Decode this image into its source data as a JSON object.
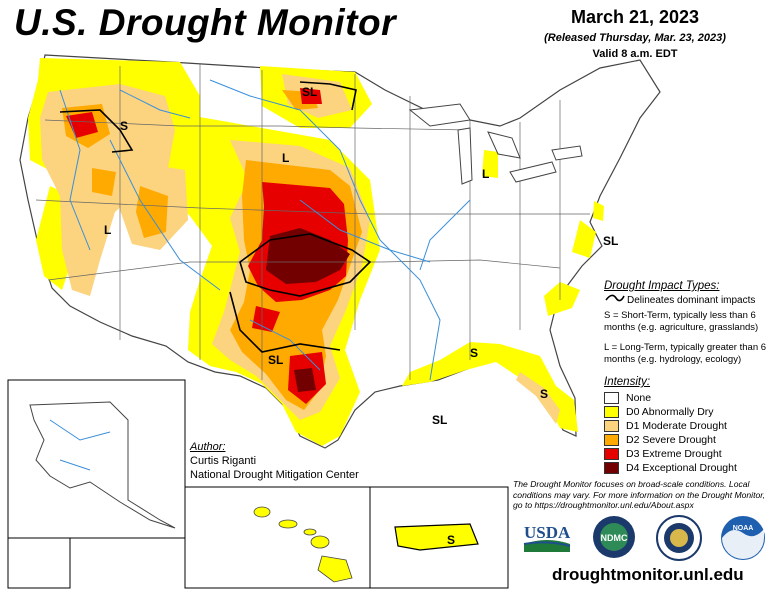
{
  "header": {
    "title": "U.S. Drought Monitor",
    "date": "March 21, 2023",
    "released": "(Released Thursday, Mar. 23, 2023)",
    "valid": "Valid 8 a.m. EDT"
  },
  "impact_types": {
    "title": "Drought Impact Types:",
    "line_label": "Delineates dominant impacts",
    "short_term": "S = Short-Term, typically less than 6 months (e.g. agriculture, grasslands)",
    "long_term": "L = Long-Term, typically greater than 6 months (e.g. hydrology, ecology)"
  },
  "intensity": {
    "title": "Intensity:",
    "categories": [
      {
        "label": "None",
        "color": "#ffffff"
      },
      {
        "label": "D0 Abnormally Dry",
        "color": "#ffff00"
      },
      {
        "label": "D1 Moderate Drought",
        "color": "#fcd37f"
      },
      {
        "label": "D2 Severe Drought",
        "color": "#ffaa00"
      },
      {
        "label": "D3 Extreme Drought",
        "color": "#e60000"
      },
      {
        "label": "D4 Exceptional Drought",
        "color": "#730000"
      }
    ]
  },
  "author": {
    "label": "Author:",
    "name": "Curtis Riganti",
    "org": "National Drought Mitigation Center"
  },
  "disclaimer": "The Drought Monitor focuses on broad-scale conditions. Local conditions may vary. For more information on the Drought Monitor, go to https://droughtmonitor.unl.edu/About.aspx",
  "website": "droughtmonitor.unl.edu",
  "logos": [
    "USDA",
    "NDMC",
    "NOAA"
  ],
  "map_labels": [
    "SL",
    "S",
    "L",
    "L",
    "L",
    "SL",
    "SL",
    "SL",
    "S",
    "S",
    "S"
  ],
  "map_colors": {
    "water": "#3b8fd9",
    "border": "#555555",
    "land": "#ffffff"
  }
}
